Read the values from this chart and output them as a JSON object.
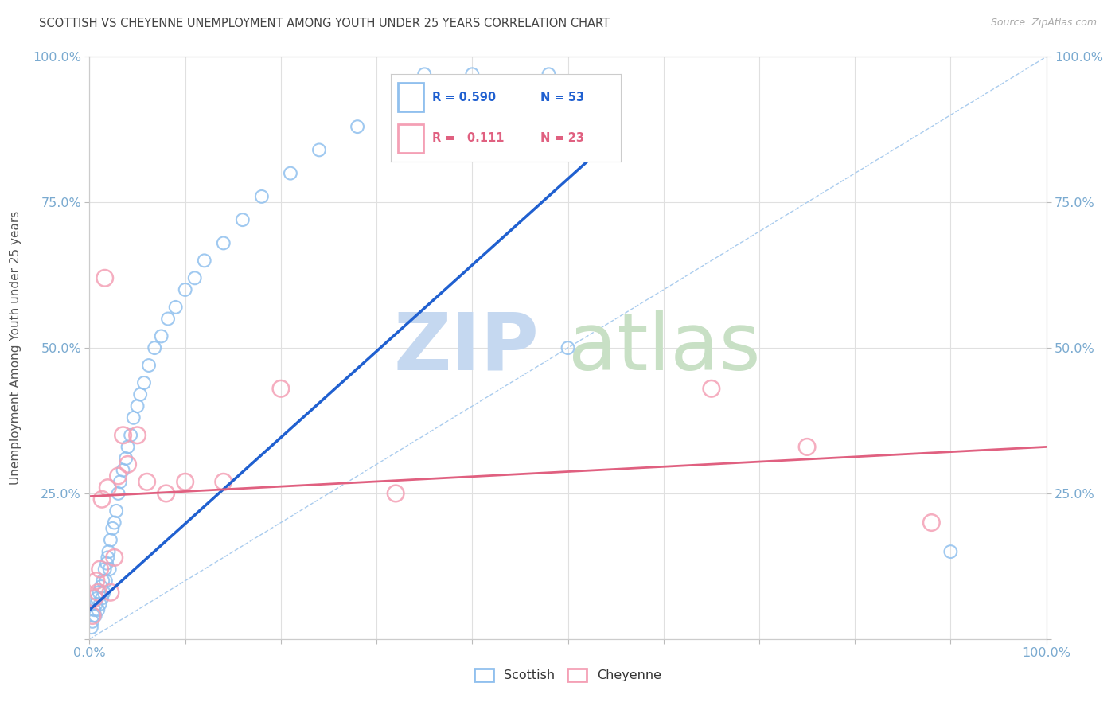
{
  "title": "SCOTTISH VS CHEYENNE UNEMPLOYMENT AMONG YOUTH UNDER 25 YEARS CORRELATION CHART",
  "source": "Source: ZipAtlas.com",
  "ylabel": "Unemployment Among Youth under 25 years",
  "xlim": [
    0,
    1.0
  ],
  "ylim": [
    0,
    1.0
  ],
  "legend_r_scottish": "R = 0.590",
  "legend_n_scottish": "N = 53",
  "legend_r_cheyenne": "R =   0.111",
  "legend_n_cheyenne": "N = 23",
  "scottish_color": "#90C0EE",
  "cheyenne_color": "#F4A0B5",
  "scottish_line_color": "#2060D0",
  "cheyenne_line_color": "#E06080",
  "diag_color": "#AACCEE",
  "watermark_zip_color": "#C5D8F0",
  "watermark_atlas_color": "#C8E0C5",
  "bg_color": "#FFFFFF",
  "grid_color": "#E0E0E0",
  "title_color": "#444444",
  "tick_label_color": "#7AAAD0",
  "scottish_line": [
    0.0,
    0.05,
    0.52,
    0.82
  ],
  "cheyenne_line": [
    0.0,
    0.245,
    1.0,
    0.33
  ],
  "scottish_x": [
    0.002,
    0.003,
    0.004,
    0.005,
    0.006,
    0.007,
    0.008,
    0.009,
    0.01,
    0.011,
    0.012,
    0.013,
    0.014,
    0.015,
    0.016,
    0.017,
    0.018,
    0.019,
    0.02,
    0.021,
    0.022,
    0.024,
    0.026,
    0.028,
    0.03,
    0.032,
    0.035,
    0.038,
    0.04,
    0.043,
    0.046,
    0.05,
    0.053,
    0.057,
    0.062,
    0.068,
    0.075,
    0.082,
    0.09,
    0.1,
    0.11,
    0.12,
    0.14,
    0.16,
    0.18,
    0.21,
    0.24,
    0.28,
    0.35,
    0.4,
    0.48,
    0.5,
    0.9
  ],
  "scottish_y": [
    0.02,
    0.03,
    0.04,
    0.05,
    0.04,
    0.06,
    0.07,
    0.05,
    0.08,
    0.06,
    0.09,
    0.07,
    0.1,
    0.08,
    0.12,
    0.1,
    0.13,
    0.14,
    0.15,
    0.12,
    0.17,
    0.19,
    0.2,
    0.22,
    0.25,
    0.27,
    0.29,
    0.31,
    0.33,
    0.35,
    0.38,
    0.4,
    0.42,
    0.44,
    0.47,
    0.5,
    0.52,
    0.55,
    0.57,
    0.6,
    0.62,
    0.65,
    0.68,
    0.72,
    0.76,
    0.8,
    0.84,
    0.88,
    0.97,
    0.97,
    0.97,
    0.5,
    0.15
  ],
  "cheyenne_x": [
    0.003,
    0.005,
    0.007,
    0.009,
    0.011,
    0.013,
    0.016,
    0.019,
    0.022,
    0.026,
    0.03,
    0.035,
    0.04,
    0.05,
    0.06,
    0.08,
    0.1,
    0.14,
    0.2,
    0.32,
    0.65,
    0.75,
    0.88
  ],
  "cheyenne_y": [
    0.04,
    0.07,
    0.1,
    0.08,
    0.12,
    0.24,
    0.62,
    0.26,
    0.08,
    0.14,
    0.28,
    0.35,
    0.3,
    0.35,
    0.27,
    0.25,
    0.27,
    0.27,
    0.43,
    0.25,
    0.43,
    0.33,
    0.2
  ],
  "scottish_marker_size": 130,
  "cheyenne_marker_size": 220,
  "scottish_lw": 1.5,
  "cheyenne_lw": 1.8
}
